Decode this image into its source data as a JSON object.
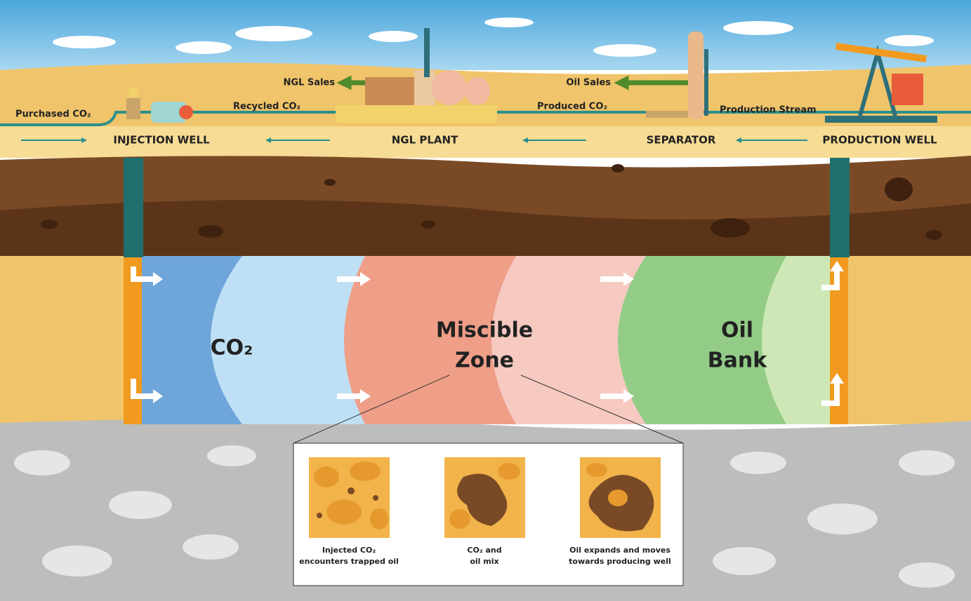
{
  "surface": {
    "flow_labels": [
      "Purchased CO₂",
      "Recycled CO₂",
      "NGL Sales",
      "Oil Sales",
      "Produced CO₂",
      "Production Stream"
    ],
    "stations": [
      "INJECTION WELL",
      "NGL PLANT",
      "SEPARATOR",
      "PRODUCTION WELL"
    ]
  },
  "zones": [
    {
      "lines": [
        "CO₂"
      ]
    },
    {
      "lines": [
        "Miscible",
        "Zone"
      ]
    },
    {
      "lines": [
        "Oil",
        "Bank"
      ]
    }
  ],
  "panels": [
    {
      "caption": [
        "Injected CO₂",
        "encounters trapped oil"
      ]
    },
    {
      "caption": [
        "CO₂ and",
        "oil mix"
      ]
    },
    {
      "caption": [
        "Oil expands and moves",
        "towards producing well"
      ]
    }
  ]
}
